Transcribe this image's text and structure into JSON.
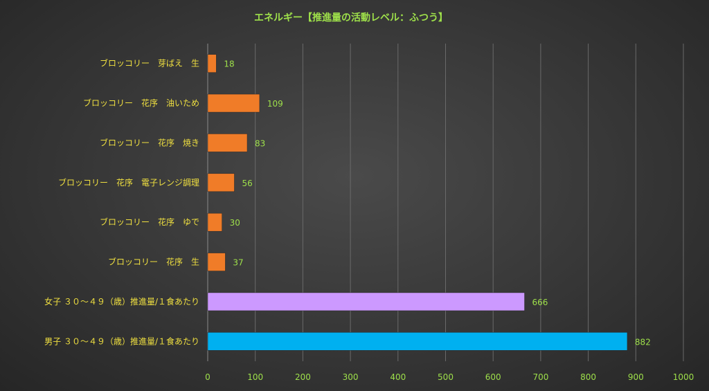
{
  "chart_data": {
    "type": "bar",
    "orientation": "horizontal",
    "title": "エネルギー【推進量の活動レベル：ふつう】",
    "categories": [
      "ブロッコリー　芽ばえ　生",
      "ブロッコリー　花序　油いため",
      "ブロッコリー　花序　焼き",
      "ブロッコリー　花序　電子レンジ調理",
      "ブロッコリー　花序　ゆで",
      "ブロッコリー　花序　生",
      "女子 ３０～４９（歳）推進量/１食あたり",
      "男子 ３０～４９（歳）推進量/１食あたり"
    ],
    "values": [
      18,
      109,
      83,
      56,
      30,
      37,
      666,
      882
    ],
    "bar_colors": [
      "#f07c28",
      "#f07c28",
      "#f07c28",
      "#f07c28",
      "#f07c28",
      "#f07c28",
      "#cc99ff",
      "#00b0f0"
    ],
    "xlim": [
      0,
      1000
    ],
    "xticks": [
      0,
      100,
      200,
      300,
      400,
      500,
      600,
      700,
      800,
      900,
      1000
    ],
    "grid": true,
    "legend": "none"
  }
}
